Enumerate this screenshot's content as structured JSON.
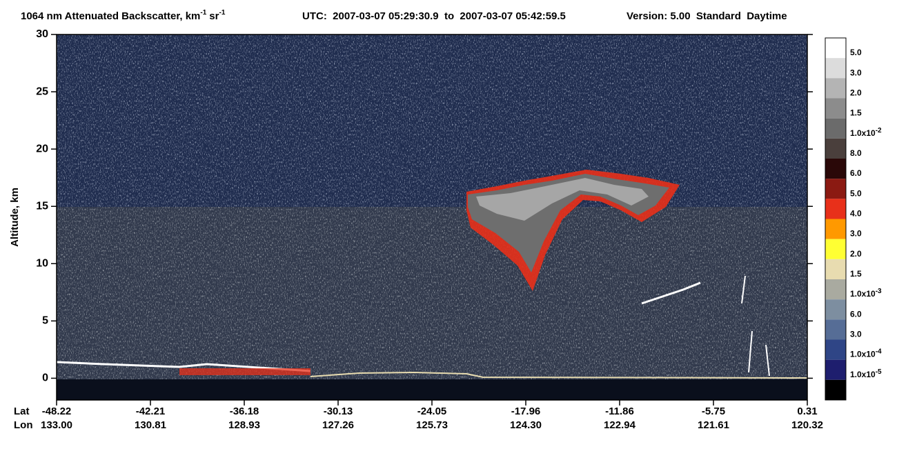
{
  "chart_data": {
    "type": "heatmap",
    "title": "1064 nm Attenuated Backscatter, km",
    "title_unit1_exp": "-1",
    "title_unit2": "sr",
    "title_unit2_exp": "-1",
    "utc": "UTC:  2007-03-07 05:29:30.9  to  2007-03-07 05:42:59.5",
    "version": "Version: 5.00  Standard  Daytime",
    "ylabel": "Altitude, km",
    "ylim": [
      -1.9,
      30
    ],
    "yticks": [
      0,
      5,
      10,
      15,
      20,
      25,
      30
    ],
    "x_row_labels": [
      "Lat",
      "Lon"
    ],
    "lat": [
      "-48.22",
      "-42.21",
      "-36.18",
      "-30.13",
      "-24.05",
      "-17.96",
      "-11.86",
      "-5.75",
      "0.31"
    ],
    "lon": [
      "133.00",
      "130.81",
      "128.93",
      "127.26",
      "125.73",
      "124.30",
      "122.94",
      "121.61",
      "120.32"
    ],
    "colorbar": {
      "colors": [
        "#ffffff",
        "#dcdcdc",
        "#b4b4b4",
        "#8c8c8c",
        "#6b6b6b",
        "#4a3f3c",
        "#2a0808",
        "#8b1a12",
        "#e8301a",
        "#ff9900",
        "#ffff33",
        "#e8dcb0",
        "#a9aaa0",
        "#7d8ea0",
        "#566d96",
        "#2f4586",
        "#1e1e6e",
        "#000000"
      ],
      "labels": [
        {
          "base": "5.0"
        },
        {
          "base": "3.0"
        },
        {
          "base": "2.0"
        },
        {
          "base": "1.5"
        },
        {
          "base": "1.0x10",
          "exp": "-2"
        },
        {
          "base": "8.0"
        },
        {
          "base": "6.0"
        },
        {
          "base": "5.0"
        },
        {
          "base": "4.0"
        },
        {
          "base": "3.0"
        },
        {
          "base": "2.0"
        },
        {
          "base": "1.5"
        },
        {
          "base": "1.0x10",
          "exp": "-3"
        },
        {
          "base": "6.0"
        },
        {
          "base": "3.0"
        },
        {
          "base": "1.0x10",
          "exp": "-4"
        },
        {
          "base": "1.0x10",
          "exp": "-5"
        }
      ]
    }
  }
}
